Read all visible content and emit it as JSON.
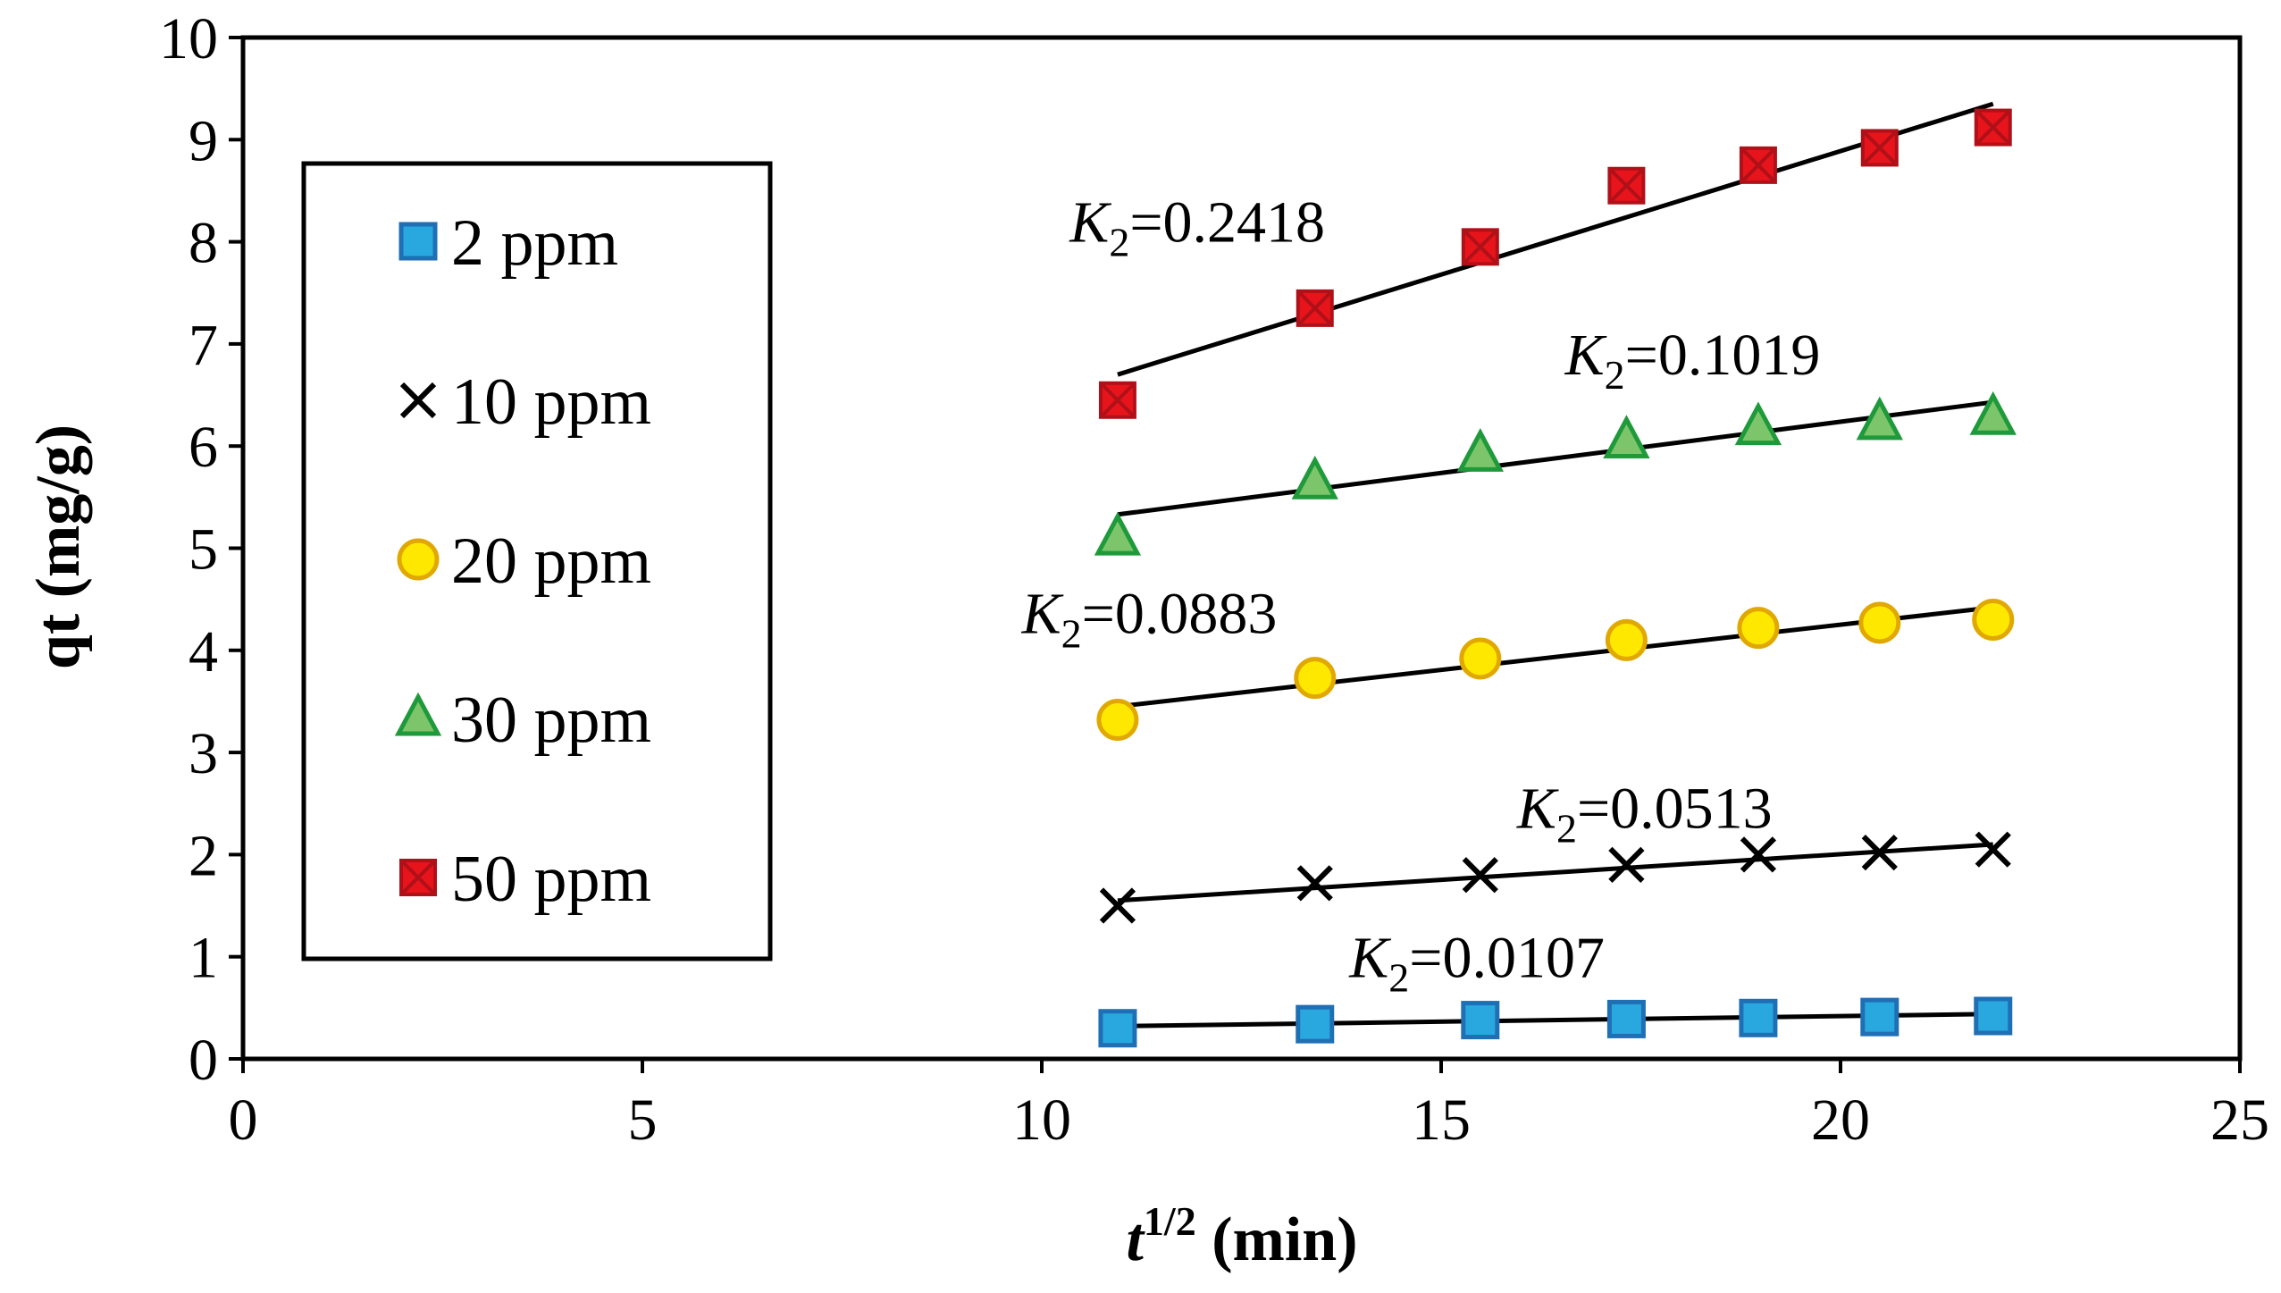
{
  "chart_data": {
    "type": "scatter",
    "xlabel": {
      "base": "t",
      "sup": "1/2",
      "rest": " (min)"
    },
    "ylabel": "qt (mg/g)",
    "xlim": [
      0,
      25
    ],
    "ylim": [
      0,
      10
    ],
    "xticks": [
      "0",
      "5",
      "10",
      "15",
      "20",
      "25"
    ],
    "yticks": [
      "0",
      "1",
      "2",
      "3",
      "4",
      "5",
      "6",
      "7",
      "8",
      "9",
      "10"
    ],
    "grid": false,
    "legend_position": "left",
    "x": [
      10.95,
      13.42,
      15.49,
      17.32,
      18.97,
      20.49,
      21.91
    ],
    "series": [
      {
        "name": "2 ppm",
        "marker": "square",
        "color": "#29A8E0",
        "edge": "#1F6FB4",
        "values": [
          0.3,
          0.34,
          0.38,
          0.39,
          0.4,
          0.41,
          0.42
        ],
        "fit": [
          0.32,
          0.44
        ]
      },
      {
        "name": "10 ppm",
        "marker": "x",
        "color": "#000000",
        "edge": "#000000",
        "values": [
          1.5,
          1.72,
          1.8,
          1.9,
          2.0,
          2.02,
          2.05
        ],
        "fit": [
          1.55,
          2.1
        ]
      },
      {
        "name": "20 ppm",
        "marker": "circle",
        "color": "#FFE800",
        "edge": "#E0A800",
        "values": [
          3.32,
          3.73,
          3.92,
          4.1,
          4.22,
          4.27,
          4.3
        ],
        "fit": [
          3.45,
          4.42
        ]
      },
      {
        "name": "30 ppm",
        "marker": "triangle",
        "color": "#7CC56B",
        "edge": "#1E9A3A",
        "values": [
          5.1,
          5.65,
          5.92,
          6.05,
          6.18,
          6.23,
          6.28
        ],
        "fit": [
          5.33,
          6.43
        ]
      },
      {
        "name": "50 ppm",
        "marker": "square-x",
        "color": "#E8141B",
        "edge": "#B01018",
        "values": [
          6.45,
          7.35,
          7.95,
          8.55,
          8.75,
          8.92,
          9.12
        ],
        "fit": [
          6.7,
          9.35
        ]
      }
    ],
    "annotations": [
      {
        "base": "K",
        "sub": "2",
        "text": "=0.2418",
        "x": 10.35,
        "y": 8.0
      },
      {
        "base": "K",
        "sub": "2",
        "text": "=0.1019",
        "x": 16.55,
        "y": 6.7
      },
      {
        "base": "K",
        "sub": "2",
        "text": "=0.0883",
        "x": 9.75,
        "y": 4.17
      },
      {
        "base": "K",
        "sub": "2",
        "text": "=0.0513",
        "x": 15.95,
        "y": 2.26
      },
      {
        "base": "K",
        "sub": "2",
        "text": "=0.0107",
        "x": 13.85,
        "y": 0.8
      }
    ]
  }
}
